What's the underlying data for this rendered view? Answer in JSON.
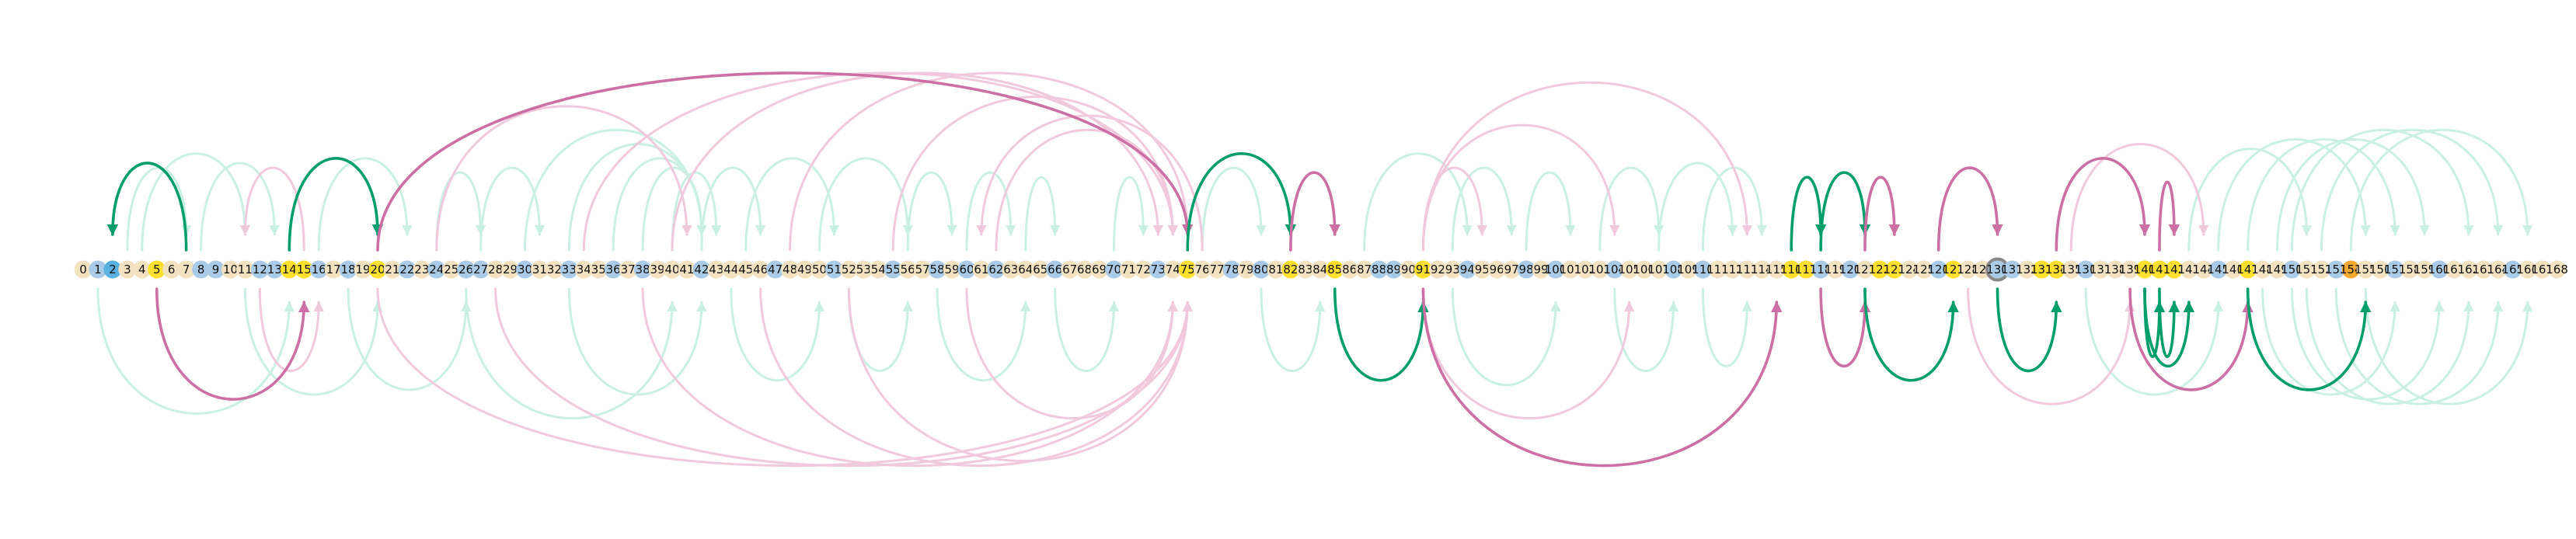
{
  "colors": {
    "background": "#ffffff",
    "node_default": "#f2e2c0",
    "node_blue": "#a9cbe7",
    "node_dark_blue": "#5ab0e0",
    "node_yellow": "#ffe02e",
    "node_orange": "#f0a830",
    "node_gray_ring": "#888888",
    "arc_green_faint": "#c9f0e3",
    "arc_pink_faint": "#f1c9dd",
    "arc_green_bold": "#009e6a",
    "arc_pink_bold": "#cc6fa5"
  },
  "nodes": {
    "count": 169,
    "first": 0,
    "last": 168,
    "highlight_yellow": [
      5,
      14,
      15,
      20,
      75,
      82,
      85,
      91,
      116,
      117,
      122,
      123,
      127,
      133,
      134,
      140,
      141,
      142,
      147
    ],
    "highlight_orange": [
      154
    ],
    "highlight_dark_blue": [
      2
    ],
    "highlight_blue": [
      1,
      8,
      9,
      12,
      13,
      16,
      18,
      22,
      24,
      26,
      27,
      30,
      33,
      36,
      38,
      42,
      47,
      51,
      55,
      58,
      60,
      62,
      66,
      70,
      73,
      78,
      80,
      88,
      89,
      94,
      98,
      100,
      104,
      108,
      110,
      118,
      120,
      126,
      130,
      131,
      136,
      145,
      150,
      153,
      157,
      160,
      165
    ],
    "ring_gray": [
      130
    ]
  },
  "arcs": {
    "bold": [
      {
        "from": 7,
        "to": 2,
        "dir": "down",
        "color": "green"
      },
      {
        "from": 14,
        "to": 20,
        "dir": "down",
        "color": "green"
      },
      {
        "from": 5,
        "to": 15,
        "dir": "up",
        "color": "pink"
      },
      {
        "from": 20,
        "to": 75,
        "dir": "down",
        "color": "pink"
      },
      {
        "from": 75,
        "to": 82,
        "dir": "down",
        "color": "green"
      },
      {
        "from": 82,
        "to": 85,
        "dir": "down",
        "color": "pink"
      },
      {
        "from": 85,
        "to": 91,
        "dir": "up",
        "color": "green"
      },
      {
        "from": 91,
        "to": 115,
        "dir": "up",
        "color": "pink"
      },
      {
        "from": 116,
        "to": 118,
        "dir": "down",
        "color": "green"
      },
      {
        "from": 118,
        "to": 121,
        "dir": "up",
        "color": "pink"
      },
      {
        "from": 118,
        "to": 121,
        "dir": "down",
        "color": "green"
      },
      {
        "from": 121,
        "to": 123,
        "dir": "down",
        "color": "pink"
      },
      {
        "from": 121,
        "to": 127,
        "dir": "up",
        "color": "green"
      },
      {
        "from": 126,
        "to": 130,
        "dir": "down",
        "color": "pink"
      },
      {
        "from": 130,
        "to": 134,
        "dir": "up",
        "color": "green"
      },
      {
        "from": 134,
        "to": 140,
        "dir": "down",
        "color": "pink"
      },
      {
        "from": 141,
        "to": 142,
        "dir": "down",
        "color": "pink"
      },
      {
        "from": 140,
        "to": 141,
        "dir": "up",
        "color": "green"
      },
      {
        "from": 141,
        "to": 142,
        "dir": "up",
        "color": "green"
      },
      {
        "from": 140,
        "to": 143,
        "dir": "up",
        "color": "green"
      },
      {
        "from": 139,
        "to": 147,
        "dir": "up",
        "color": "pink"
      },
      {
        "from": 147,
        "to": 155,
        "dir": "up",
        "color": "green"
      }
    ],
    "faint": [
      {
        "from": 3,
        "to": 7,
        "dir": "down",
        "color": "green"
      },
      {
        "from": 4,
        "to": 11,
        "dir": "down",
        "color": "green"
      },
      {
        "from": 8,
        "to": 13,
        "dir": "down",
        "color": "green"
      },
      {
        "from": 15,
        "to": 11,
        "dir": "down",
        "color": "pink"
      },
      {
        "from": 16,
        "to": 22,
        "dir": "down",
        "color": "green"
      },
      {
        "from": 24,
        "to": 27,
        "dir": "down",
        "color": "green"
      },
      {
        "from": 27,
        "to": 31,
        "dir": "down",
        "color": "green"
      },
      {
        "from": 30,
        "to": 42,
        "dir": "down",
        "color": "green"
      },
      {
        "from": 33,
        "to": 42,
        "dir": "down",
        "color": "green"
      },
      {
        "from": 36,
        "to": 42,
        "dir": "down",
        "color": "green"
      },
      {
        "from": 38,
        "to": 42,
        "dir": "down",
        "color": "green"
      },
      {
        "from": 40,
        "to": 43,
        "dir": "down",
        "color": "green"
      },
      {
        "from": 42,
        "to": 46,
        "dir": "down",
        "color": "green"
      },
      {
        "from": 45,
        "to": 51,
        "dir": "down",
        "color": "green"
      },
      {
        "from": 50,
        "to": 56,
        "dir": "down",
        "color": "green"
      },
      {
        "from": 56,
        "to": 59,
        "dir": "down",
        "color": "green"
      },
      {
        "from": 60,
        "to": 63,
        "dir": "down",
        "color": "green"
      },
      {
        "from": 64,
        "to": 66,
        "dir": "down",
        "color": "green"
      },
      {
        "from": 70,
        "to": 72,
        "dir": "down",
        "color": "green"
      },
      {
        "from": 76,
        "to": 80,
        "dir": "down",
        "color": "green"
      },
      {
        "from": 87,
        "to": 94,
        "dir": "down",
        "color": "green"
      },
      {
        "from": 93,
        "to": 97,
        "dir": "down",
        "color": "green"
      },
      {
        "from": 98,
        "to": 101,
        "dir": "down",
        "color": "green"
      },
      {
        "from": 103,
        "to": 107,
        "dir": "down",
        "color": "green"
      },
      {
        "from": 107,
        "to": 112,
        "dir": "down",
        "color": "green"
      },
      {
        "from": 110,
        "to": 114,
        "dir": "down",
        "color": "green"
      },
      {
        "from": 143,
        "to": 151,
        "dir": "down",
        "color": "green"
      },
      {
        "from": 145,
        "to": 155,
        "dir": "down",
        "color": "green"
      },
      {
        "from": 147,
        "to": 157,
        "dir": "down",
        "color": "green"
      },
      {
        "from": 149,
        "to": 159,
        "dir": "down",
        "color": "green"
      },
      {
        "from": 150,
        "to": 162,
        "dir": "down",
        "color": "green"
      },
      {
        "from": 152,
        "to": 164,
        "dir": "down",
        "color": "green"
      },
      {
        "from": 154,
        "to": 166,
        "dir": "down",
        "color": "green"
      },
      {
        "from": 24,
        "to": 41,
        "dir": "down",
        "color": "pink"
      },
      {
        "from": 34,
        "to": 74,
        "dir": "down",
        "color": "pink"
      },
      {
        "from": 40,
        "to": 73,
        "dir": "down",
        "color": "pink"
      },
      {
        "from": 48,
        "to": 75,
        "dir": "down",
        "color": "pink"
      },
      {
        "from": 55,
        "to": 74,
        "dir": "down",
        "color": "pink"
      },
      {
        "from": 62,
        "to": 74,
        "dir": "down",
        "color": "pink"
      },
      {
        "from": 76,
        "to": 61,
        "dir": "down",
        "color": "pink"
      },
      {
        "from": 91,
        "to": 104,
        "dir": "down",
        "color": "pink"
      },
      {
        "from": 91,
        "to": 113,
        "dir": "down",
        "color": "pink"
      },
      {
        "from": 91,
        "to": 95,
        "dir": "down",
        "color": "pink"
      },
      {
        "from": 135,
        "to": 144,
        "dir": "down",
        "color": "pink"
      },
      {
        "from": 1,
        "to": 14,
        "dir": "up",
        "color": "green"
      },
      {
        "from": 11,
        "to": 20,
        "dir": "up",
        "color": "green"
      },
      {
        "from": 18,
        "to": 26,
        "dir": "up",
        "color": "green"
      },
      {
        "from": 26,
        "to": 40,
        "dir": "up",
        "color": "green"
      },
      {
        "from": 33,
        "to": 42,
        "dir": "up",
        "color": "green"
      },
      {
        "from": 44,
        "to": 50,
        "dir": "up",
        "color": "green"
      },
      {
        "from": 52,
        "to": 56,
        "dir": "up",
        "color": "green"
      },
      {
        "from": 58,
        "to": 64,
        "dir": "up",
        "color": "green"
      },
      {
        "from": 66,
        "to": 70,
        "dir": "up",
        "color": "green"
      },
      {
        "from": 80,
        "to": 84,
        "dir": "up",
        "color": "green"
      },
      {
        "from": 93,
        "to": 100,
        "dir": "up",
        "color": "green"
      },
      {
        "from": 104,
        "to": 108,
        "dir": "up",
        "color": "green"
      },
      {
        "from": 110,
        "to": 113,
        "dir": "up",
        "color": "green"
      },
      {
        "from": 136,
        "to": 145,
        "dir": "up",
        "color": "green"
      },
      {
        "from": 148,
        "to": 157,
        "dir": "up",
        "color": "green"
      },
      {
        "from": 150,
        "to": 160,
        "dir": "up",
        "color": "green"
      },
      {
        "from": 151,
        "to": 162,
        "dir": "up",
        "color": "green"
      },
      {
        "from": 153,
        "to": 164,
        "dir": "up",
        "color": "green"
      },
      {
        "from": 155,
        "to": 166,
        "dir": "up",
        "color": "green"
      },
      {
        "from": 20,
        "to": 75,
        "dir": "up",
        "color": "pink"
      },
      {
        "from": 28,
        "to": 75,
        "dir": "up",
        "color": "pink"
      },
      {
        "from": 38,
        "to": 74,
        "dir": "up",
        "color": "pink"
      },
      {
        "from": 46,
        "to": 75,
        "dir": "up",
        "color": "pink"
      },
      {
        "from": 52,
        "to": 75,
        "dir": "up",
        "color": "pink"
      },
      {
        "from": 60,
        "to": 74,
        "dir": "up",
        "color": "pink"
      },
      {
        "from": 91,
        "to": 105,
        "dir": "up",
        "color": "pink"
      },
      {
        "from": 128,
        "to": 139,
        "dir": "up",
        "color": "pink"
      },
      {
        "from": 12,
        "to": 16,
        "dir": "up",
        "color": "pink"
      }
    ]
  }
}
